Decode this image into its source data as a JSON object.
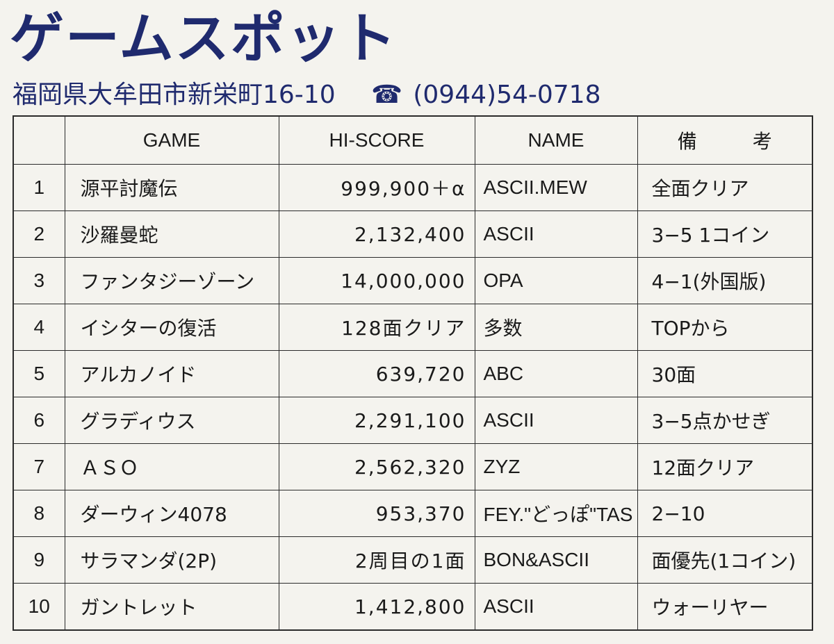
{
  "header": {
    "title": "ゲームスポット",
    "address": "福岡県大牟田市新栄町16-10",
    "phone_icon": "☎",
    "phone": "(0944)54-0718"
  },
  "table": {
    "columns": {
      "rank": "",
      "game": "GAME",
      "score": "HI-SCORE",
      "name": "NAME",
      "note_a": "備",
      "note_b": "考"
    },
    "rows": [
      {
        "rank": "1",
        "game": "源平討魔伝",
        "score": "999,900＋α",
        "name": "ASCII.MEW",
        "note": "全面クリア"
      },
      {
        "rank": "2",
        "game": "沙羅曼蛇",
        "score": "2,132,400",
        "name": "ASCII",
        "note": "3−5 1コイン"
      },
      {
        "rank": "3",
        "game": "ファンタジーゾーン",
        "score": "14,000,000",
        "name": "OPA",
        "note": "4−1(外国版)"
      },
      {
        "rank": "4",
        "game": "イシターの復活",
        "score": "128面クリア",
        "name": "多数",
        "note": "TOPから"
      },
      {
        "rank": "5",
        "game": "アルカノイド",
        "score": "639,720",
        "name": "ABC",
        "note": "30面"
      },
      {
        "rank": "6",
        "game": "グラディウス",
        "score": "2,291,100",
        "name": "ASCII",
        "note": "3−5点かせぎ"
      },
      {
        "rank": "7",
        "game": "ＡＳＯ",
        "score": "2,562,320",
        "name": "ZYZ",
        "note": "12面クリア"
      },
      {
        "rank": "8",
        "game": "ダーウィン4078",
        "score": "953,370",
        "name": "FEY.\"どっぽ\"TAS",
        "note": "2−10"
      },
      {
        "rank": "9",
        "game": "サラマンダ(2P)",
        "score": "2周目の1面",
        "name": "BON&ASCII",
        "note": "面優先(1コイン)"
      },
      {
        "rank": "10",
        "game": "ガントレット",
        "score": "1,412,800",
        "name": "ASCII",
        "note": "ウォーリヤー"
      }
    ]
  }
}
